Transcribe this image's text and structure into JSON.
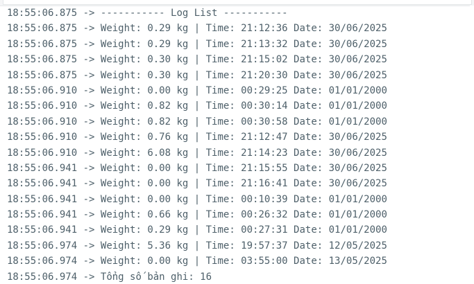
{
  "log": {
    "arrow": "->",
    "lines": [
      {
        "time": "18:55:06.875",
        "message": "----------- Log List -----------"
      },
      {
        "time": "18:55:06.875",
        "message": "Weight: 0.29 kg | Time: 21:12:36 Date: 30/06/2025"
      },
      {
        "time": "18:55:06.875",
        "message": "Weight: 0.29 kg | Time: 21:13:32 Date: 30/06/2025"
      },
      {
        "time": "18:55:06.875",
        "message": "Weight: 0.30 kg | Time: 21:15:02 Date: 30/06/2025"
      },
      {
        "time": "18:55:06.875",
        "message": "Weight: 0.30 kg | Time: 21:20:30 Date: 30/06/2025"
      },
      {
        "time": "18:55:06.910",
        "message": "Weight: 0.00 kg | Time: 00:29:25 Date: 01/01/2000"
      },
      {
        "time": "18:55:06.910",
        "message": "Weight: 0.82 kg | Time: 00:30:14 Date: 01/01/2000"
      },
      {
        "time": "18:55:06.910",
        "message": "Weight: 0.82 kg | Time: 00:30:58 Date: 01/01/2000"
      },
      {
        "time": "18:55:06.910",
        "message": "Weight: 0.76 kg | Time: 21:12:47 Date: 30/06/2025"
      },
      {
        "time": "18:55:06.910",
        "message": "Weight: 6.08 kg | Time: 21:14:23 Date: 30/06/2025"
      },
      {
        "time": "18:55:06.941",
        "message": "Weight: 0.00 kg | Time: 21:15:55 Date: 30/06/2025"
      },
      {
        "time": "18:55:06.941",
        "message": "Weight: 0.00 kg | Time: 21:16:41 Date: 30/06/2025"
      },
      {
        "time": "18:55:06.941",
        "message": "Weight: 0.00 kg | Time: 00:10:39 Date: 01/01/2000"
      },
      {
        "time": "18:55:06.941",
        "message": "Weight: 0.66 kg | Time: 00:26:32 Date: 01/01/2000"
      },
      {
        "time": "18:55:06.941",
        "message": "Weight: 0.29 kg | Time: 00:27:31 Date: 01/01/2000"
      },
      {
        "time": "18:55:06.974",
        "message": "Weight: 5.36 kg | Time: 19:57:37 Date: 12/05/2025"
      },
      {
        "time": "18:55:06.974",
        "message": "Weight: 0.00 kg | Time: 03:55:00 Date: 13/05/2025"
      },
      {
        "time": "18:55:06.974",
        "message": "Tổng số bản ghi: 16"
      }
    ]
  }
}
